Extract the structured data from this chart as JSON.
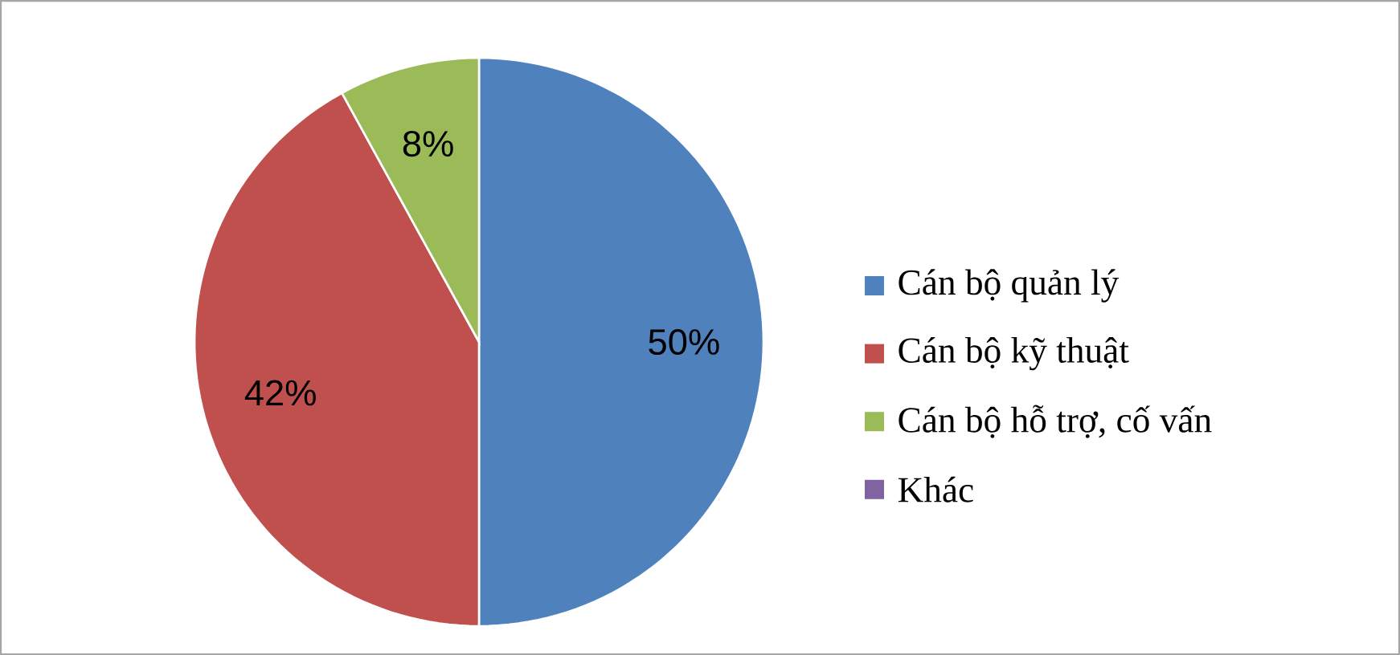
{
  "chart_data": {
    "type": "pie",
    "categories": [
      "Cán bộ quản lý",
      "Cán bộ kỹ thuật",
      "Cán bộ hỗ trợ, cố vấn",
      "Khác"
    ],
    "values": [
      50,
      42,
      8,
      0
    ],
    "colors": [
      "#4f81bd",
      "#c0504d",
      "#9bbb59",
      "#8064a2"
    ],
    "value_labels": [
      "50%",
      "42%",
      "8%",
      null
    ],
    "legend": "right"
  }
}
